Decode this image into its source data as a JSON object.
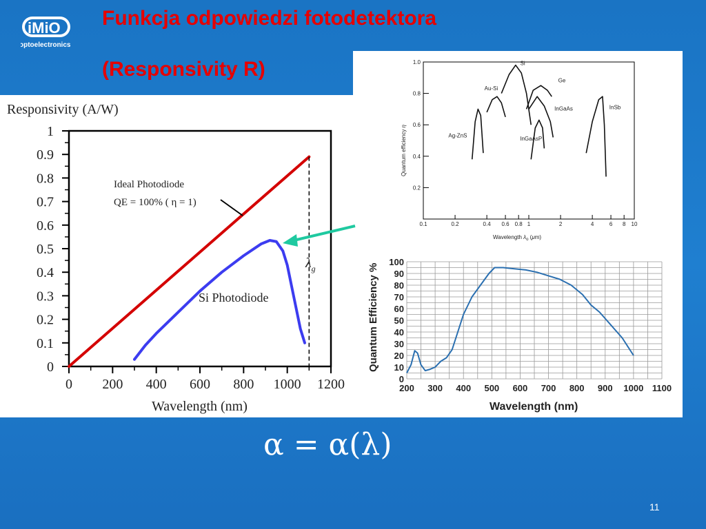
{
  "slide": {
    "title_line1": "Funkcja odpowiedzi fotodetektora",
    "title_line2": "(Responsivity R)",
    "logo_text": "optoelectronics",
    "formula": "α = α(λ)",
    "page_number": "11"
  },
  "colors": {
    "background": "#1a74c4",
    "title": "#e60000",
    "ideal_line": "#d40000",
    "si_curve": "#3c3cf0",
    "arrow": "#1fc9a0"
  },
  "chart_data": [
    {
      "type": "line",
      "title": "Responsivity (A/W)",
      "xlabel": "Wavelength (nm)",
      "ylabel": "",
      "xlim": [
        0,
        1200
      ],
      "ylim": [
        0,
        1
      ],
      "x_ticks": [
        "0",
        "200",
        "400",
        "600",
        "800",
        "1000",
        "1200"
      ],
      "y_ticks": [
        "0",
        "0.1",
        "0.2",
        "0.3",
        "0.4",
        "0.5",
        "0.6",
        "0.7",
        "0.8",
        "0.9",
        "1"
      ],
      "annotations": {
        "ideal_label_1": "Ideal Photodiode",
        "ideal_label_2": "QE = 100% ( η = 1)",
        "si_label": "Si Photodiode",
        "lambda_g": "λg"
      },
      "series": [
        {
          "name": "Ideal Photodiode",
          "x": [
            0,
            1100
          ],
          "y": [
            0,
            0.89
          ]
        },
        {
          "name": "Si Photodiode",
          "x": [
            300,
            350,
            400,
            500,
            600,
            700,
            800,
            880,
            920,
            950,
            980,
            1000,
            1020,
            1040,
            1060,
            1080
          ],
          "y": [
            0.03,
            0.09,
            0.14,
            0.23,
            0.32,
            0.4,
            0.47,
            0.52,
            0.535,
            0.53,
            0.49,
            0.43,
            0.34,
            0.25,
            0.16,
            0.1
          ]
        }
      ],
      "lambda_g_x": 1100,
      "grid": false,
      "legend": "none"
    },
    {
      "type": "line",
      "xlabel": "Wavelength λo (μm)",
      "ylabel": "Quantum efficiency η",
      "x_log": true,
      "xlim": [
        0.1,
        10
      ],
      "ylim": [
        0,
        1.0
      ],
      "x_ticks": [
        "0.1",
        "0.2",
        "0.4",
        "0.6",
        "0.8",
        "1",
        "2",
        "4",
        "6",
        "8",
        "10"
      ],
      "y_ticks": [
        "0.2",
        "0.4",
        "0.6",
        "0.8",
        "1.0"
      ],
      "series": [
        {
          "name": "Ag-ZnS",
          "x": [
            0.29,
            0.31,
            0.33,
            0.35,
            0.37
          ],
          "y": [
            0.38,
            0.62,
            0.7,
            0.66,
            0.42
          ]
        },
        {
          "name": "Au-Si",
          "x": [
            0.4,
            0.45,
            0.5,
            0.55,
            0.6
          ],
          "y": [
            0.68,
            0.76,
            0.78,
            0.74,
            0.65
          ]
        },
        {
          "name": "Si",
          "x": [
            0.55,
            0.65,
            0.75,
            0.85,
            0.95,
            1.05
          ],
          "y": [
            0.8,
            0.92,
            0.98,
            0.93,
            0.8,
            0.6
          ]
        },
        {
          "name": "Ge",
          "x": [
            0.95,
            1.1,
            1.3,
            1.5,
            1.65
          ],
          "y": [
            0.7,
            0.82,
            0.85,
            0.82,
            0.78
          ]
        },
        {
          "name": "InGaAs",
          "x": [
            1.0,
            1.2,
            1.4,
            1.6,
            1.7
          ],
          "y": [
            0.7,
            0.78,
            0.72,
            0.62,
            0.52
          ]
        },
        {
          "name": "InGaAsP",
          "x": [
            1.05,
            1.15,
            1.25,
            1.35,
            1.4
          ],
          "y": [
            0.38,
            0.58,
            0.63,
            0.58,
            0.45
          ]
        },
        {
          "name": "InSb",
          "x": [
            3.5,
            4.0,
            4.6,
            5.0,
            5.2,
            5.4
          ],
          "y": [
            0.42,
            0.62,
            0.76,
            0.78,
            0.6,
            0.27
          ]
        }
      ]
    },
    {
      "type": "line",
      "xlabel": "Wavelength (nm)",
      "ylabel": "Quantum Efficiency %",
      "xlim": [
        200,
        1100
      ],
      "ylim": [
        0,
        100
      ],
      "x_ticks": [
        "200",
        "300",
        "400",
        "500",
        "600",
        "700",
        "800",
        "900",
        "1000",
        "1100"
      ],
      "y_ticks": [
        "0",
        "10",
        "20",
        "30",
        "40",
        "50",
        "60",
        "70",
        "80",
        "90",
        "100"
      ],
      "grid": true,
      "series": [
        {
          "name": "",
          "x": [
            200,
            215,
            228,
            238,
            250,
            265,
            280,
            300,
            320,
            340,
            360,
            380,
            400,
            430,
            460,
            490,
            510,
            540,
            580,
            620,
            660,
            700,
            740,
            780,
            820,
            850,
            880,
            920,
            960,
            1000
          ],
          "y": [
            5,
            12,
            24,
            22,
            12,
            7,
            8,
            10,
            15,
            18,
            25,
            40,
            55,
            70,
            80,
            90,
            95,
            95,
            94,
            93,
            91,
            88,
            85,
            80,
            72,
            63,
            57,
            46,
            35,
            20
          ]
        }
      ]
    }
  ]
}
